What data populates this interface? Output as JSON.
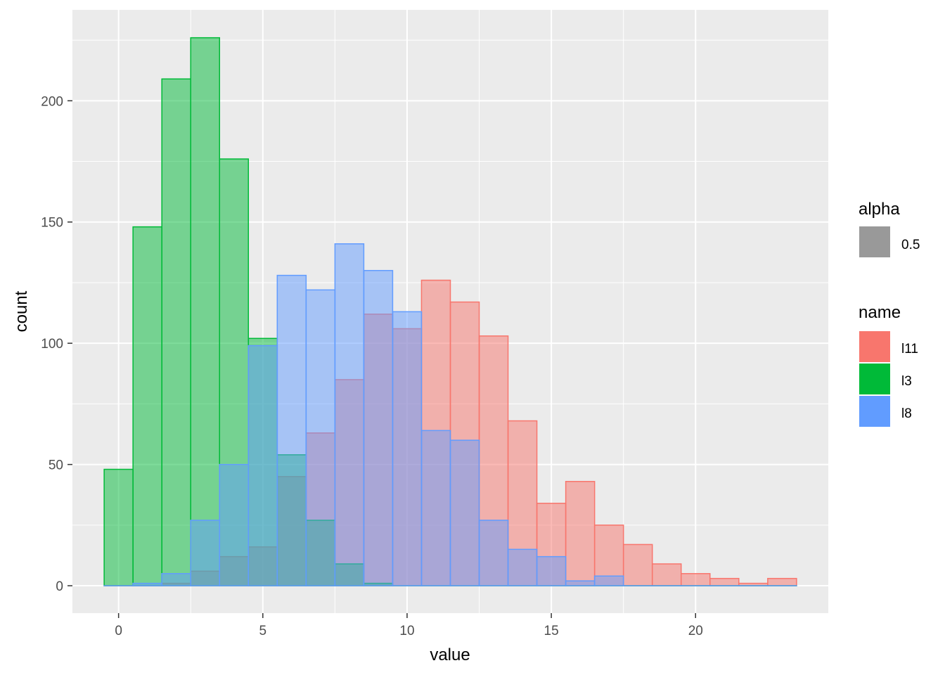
{
  "chart_data": {
    "type": "bar",
    "subtype": "overlaid-histogram",
    "title": "",
    "xlabel": "value",
    "ylabel": "count",
    "xlim": [
      -1.6,
      24.6
    ],
    "ylim": [
      -11.3,
      237.5
    ],
    "x_ticks": [
      0,
      5,
      10,
      15,
      20
    ],
    "y_ticks": [
      0,
      50,
      100,
      150,
      200
    ],
    "grid": true,
    "bin_width": 1,
    "bin_centers": [
      0,
      1,
      2,
      3,
      4,
      5,
      6,
      7,
      8,
      9,
      10,
      11,
      12,
      13,
      14,
      15,
      16,
      17,
      18,
      19,
      20,
      21,
      22,
      23
    ],
    "fill_opacity": 0.5,
    "series": [
      {
        "name": "l11",
        "color": "#F8766D",
        "values": [
          0,
          0,
          1,
          6,
          12,
          16,
          45,
          63,
          85,
          112,
          106,
          126,
          117,
          103,
          68,
          34,
          43,
          25,
          17,
          9,
          5,
          3,
          1,
          3
        ]
      },
      {
        "name": "l3",
        "color": "#00BA38",
        "values": [
          48,
          148,
          209,
          226,
          176,
          102,
          54,
          27,
          9,
          1,
          0,
          0,
          0,
          0,
          0,
          0,
          0,
          0,
          0,
          0,
          0,
          0,
          0,
          0
        ]
      },
      {
        "name": "l8",
        "color": "#619CFF",
        "values": [
          0,
          1,
          5,
          27,
          50,
          99,
          128,
          122,
          141,
          130,
          113,
          64,
          60,
          27,
          15,
          12,
          2,
          4,
          0,
          0,
          0,
          0,
          0,
          0
        ]
      }
    ],
    "legend": {
      "position": "right",
      "alpha_title": "alpha",
      "alpha_label": "0.5",
      "alpha_swatch_color": "#999999",
      "name_title": "name"
    }
  }
}
